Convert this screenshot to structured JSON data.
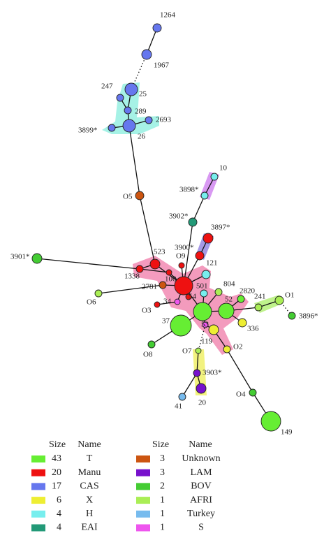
{
  "nodes": [
    "1264",
    "1967",
    "247",
    "25",
    "289",
    "2693",
    "3899*",
    "26",
    "O5",
    "10",
    "3898*",
    "3902*",
    "3897*",
    "3900*",
    "3901*",
    "523",
    "O9",
    "121",
    "1338",
    "100",
    "2781",
    "501",
    "804",
    "54",
    "2820",
    "O1",
    "O6",
    "O3",
    "34",
    "52",
    "241",
    "3896*",
    "37",
    "53",
    "336",
    "119",
    "O8",
    "O7",
    "O2",
    "3903*",
    "O4",
    "20",
    "41",
    "149"
  ],
  "legend": {
    "headers": [
      "Size",
      "Name"
    ],
    "rows": [
      {
        "size": "43",
        "name": "T",
        "color": "#66ee33"
      },
      {
        "size": "20",
        "name": "Manu",
        "color": "#ee1111"
      },
      {
        "size": "17",
        "name": "CAS",
        "color": "#6677ee"
      },
      {
        "size": "6",
        "name": "X",
        "color": "#eeee33"
      },
      {
        "size": "4",
        "name": "H",
        "color": "#77eeee"
      },
      {
        "size": "4",
        "name": "EAI",
        "color": "#229977"
      },
      {
        "size": "3",
        "name": "Unknown",
        "color": "#cc5511"
      },
      {
        "size": "3",
        "name": "LAM",
        "color": "#7711cc"
      },
      {
        "size": "2",
        "name": "BOV",
        "color": "#44cc33"
      },
      {
        "size": "1",
        "name": "AFRI",
        "color": "#aaee55"
      },
      {
        "size": "1",
        "name": "Turkey",
        "color": "#77bbee"
      },
      {
        "size": "1",
        "name": "S",
        "color": "#ee55ee"
      }
    ]
  }
}
